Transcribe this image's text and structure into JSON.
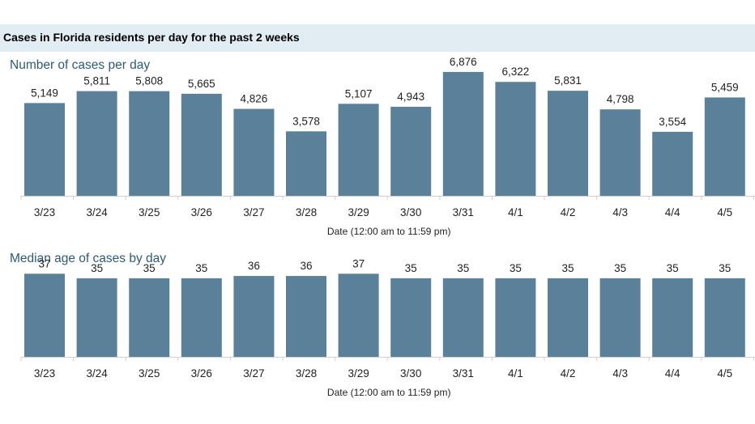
{
  "page": {
    "title": "Cases in Florida residents per day for the past 2 weeks"
  },
  "colors": {
    "bar": "#5a8199",
    "band": "#e1ecf3",
    "subtitle": "#2f5a72"
  },
  "chart_data": [
    {
      "type": "bar",
      "title": "Number of cases per day",
      "xlabel": "Date (12:00 am to 11:59 pm)",
      "ylabel": "",
      "categories": [
        "3/23",
        "3/24",
        "3/25",
        "3/26",
        "3/27",
        "3/28",
        "3/29",
        "3/30",
        "3/31",
        "4/1",
        "4/2",
        "4/3",
        "4/4",
        "4/5"
      ],
      "values": [
        5149,
        5811,
        5808,
        5665,
        4826,
        3578,
        5107,
        4943,
        6876,
        6322,
        5831,
        4798,
        3554,
        5459
      ],
      "value_labels": [
        "5,149",
        "5,811",
        "5,808",
        "5,665",
        "4,826",
        "3,578",
        "5,107",
        "4,943",
        "6,876",
        "6,322",
        "5,831",
        "4,798",
        "3,554",
        "5,459"
      ],
      "ylim": [
        0,
        7500
      ],
      "grid": false,
      "legend": "none"
    },
    {
      "type": "bar",
      "title": "Median age of cases by day",
      "xlabel": "Date (12:00 am to 11:59 pm)",
      "ylabel": "",
      "categories": [
        "3/23",
        "3/24",
        "3/25",
        "3/26",
        "3/27",
        "3/28",
        "3/29",
        "3/30",
        "3/31",
        "4/1",
        "4/2",
        "4/3",
        "4/4",
        "4/5"
      ],
      "values": [
        37,
        35,
        35,
        35,
        36,
        36,
        37,
        35,
        35,
        35,
        35,
        35,
        35,
        35
      ],
      "value_labels": [
        "37",
        "35",
        "35",
        "35",
        "36",
        "36",
        "37",
        "35",
        "35",
        "35",
        "35",
        "35",
        "35",
        "35"
      ],
      "ylim": [
        0,
        49
      ],
      "grid": false,
      "legend": "none"
    }
  ]
}
